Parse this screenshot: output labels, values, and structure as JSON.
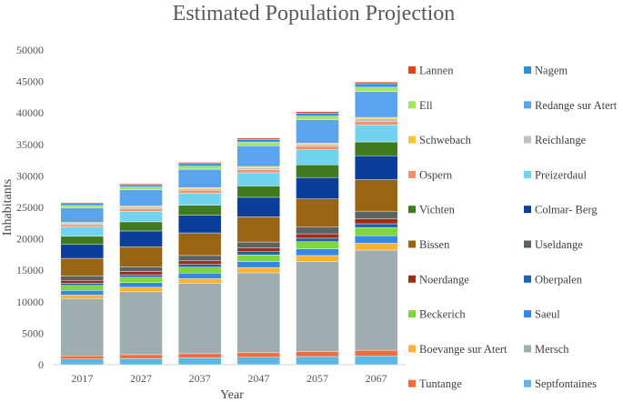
{
  "chart_data": {
    "type": "bar",
    "stacked": true,
    "title": "Estimated Population Projection",
    "xlabel": "Year",
    "ylabel": "Inhabitants",
    "ylim": [
      0,
      50000
    ],
    "yticks": [
      0,
      5000,
      10000,
      15000,
      20000,
      25000,
      30000,
      35000,
      40000,
      45000,
      50000
    ],
    "grid": false,
    "legend_position": "right",
    "categories": [
      "2017",
      "2027",
      "2037",
      "2047",
      "2057",
      "2067"
    ],
    "series": [
      {
        "name": "Septfontaines",
        "color": "#5bb8e6",
        "values": [
          900,
          1000,
          1100,
          1200,
          1300,
          1400
        ]
      },
      {
        "name": "Tuntange",
        "color": "#f26b3a",
        "values": [
          500,
          600,
          650,
          700,
          800,
          900
        ]
      },
      {
        "name": "Mersch",
        "color": "#9eadb0",
        "values": [
          9100,
          10000,
          11200,
          12700,
          14300,
          15900
        ]
      },
      {
        "name": "Boevange sur Atert",
        "color": "#f9b233",
        "values": [
          600,
          700,
          750,
          850,
          950,
          1100
        ]
      },
      {
        "name": "Saeul",
        "color": "#3388e6",
        "values": [
          700,
          750,
          850,
          950,
          1050,
          1200
        ]
      },
      {
        "name": "Beckerich",
        "color": "#7ed63a",
        "values": [
          800,
          850,
          950,
          1050,
          1150,
          1300
        ]
      },
      {
        "name": "Oberpalen",
        "color": "#1f63b0",
        "values": [
          350,
          400,
          450,
          500,
          550,
          600
        ]
      },
      {
        "name": "Noerdange",
        "color": "#9b2d12",
        "values": [
          450,
          500,
          550,
          600,
          700,
          800
        ]
      },
      {
        "name": "Useldange",
        "color": "#5a6266",
        "values": [
          700,
          750,
          850,
          950,
          1050,
          1200
        ]
      },
      {
        "name": "Bissen",
        "color": "#9a6512",
        "values": [
          2800,
          3200,
          3600,
          4000,
          4500,
          5000
        ]
      },
      {
        "name": "Colmar- Berg",
        "color": "#0b3e9a",
        "values": [
          2200,
          2500,
          2800,
          3100,
          3400,
          3800
        ]
      },
      {
        "name": "Vichten",
        "color": "#3f7a1f",
        "values": [
          1300,
          1450,
          1600,
          1800,
          2000,
          2200
        ]
      },
      {
        "name": "Preizerdaul",
        "color": "#72d3f0",
        "values": [
          1500,
          1700,
          1900,
          2100,
          2400,
          2700
        ]
      },
      {
        "name": "Ospern",
        "color": "#f2916a",
        "values": [
          350,
          400,
          450,
          500,
          550,
          600
        ]
      },
      {
        "name": "Reichlange",
        "color": "#b9c3c6",
        "values": [
          200,
          250,
          250,
          300,
          300,
          350
        ]
      },
      {
        "name": "Schwebach",
        "color": "#f7c72f",
        "values": [
          150,
          150,
          200,
          200,
          200,
          250
        ]
      },
      {
        "name": "Redange sur Atert",
        "color": "#5aa3ee",
        "values": [
          2300,
          2600,
          2900,
          3300,
          3700,
          4100
        ]
      },
      {
        "name": "Ell",
        "color": "#a2e463",
        "values": [
          400,
          450,
          500,
          550,
          600,
          700
        ]
      },
      {
        "name": "Nagem",
        "color": "#2f8fd8",
        "values": [
          300,
          350,
          400,
          450,
          500,
          550
        ]
      },
      {
        "name": "Lannen",
        "color": "#e8401a",
        "values": [
          150,
          150,
          200,
          200,
          200,
          250
        ]
      }
    ],
    "legend_order": [
      "Lannen",
      "Nagem",
      "Ell",
      "Redange sur Atert",
      "Schwebach",
      "Reichlange",
      "Ospern",
      "Preizerdaul",
      "Vichten",
      "Colmar- Berg",
      "Bissen",
      "Useldange",
      "Noerdange",
      "Oberpalen",
      "Beckerich",
      "Saeul",
      "Boevange sur Atert",
      "Mersch",
      "Tuntange",
      "Septfontaines"
    ]
  }
}
